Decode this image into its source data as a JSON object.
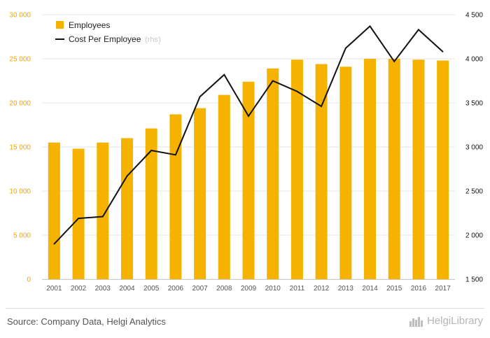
{
  "chart_data": {
    "type": "bar",
    "categories": [
      "2001",
      "2002",
      "2003",
      "2004",
      "2005",
      "2006",
      "2007",
      "2008",
      "2009",
      "2010",
      "2011",
      "2012",
      "2013",
      "2014",
      "2015",
      "2016",
      "2017"
    ],
    "series": [
      {
        "name": "Employees",
        "type": "bar",
        "axis": "left",
        "color": "#f5b300",
        "values": [
          15500,
          14800,
          15500,
          16000,
          17100,
          18700,
          19400,
          20900,
          22400,
          23900,
          24900,
          24400,
          24100,
          25000,
          25000,
          24900,
          24800
        ]
      },
      {
        "name": "Cost Per Employee",
        "name_suffix": "(rhs)",
        "type": "line",
        "axis": "right",
        "color": "#111111",
        "values": [
          1900,
          2190,
          2210,
          2670,
          2960,
          2910,
          3570,
          3820,
          3350,
          3750,
          3630,
          3460,
          4120,
          4370,
          3970,
          4330,
          4080
        ]
      }
    ],
    "y_left": {
      "min": 0,
      "max": 30000,
      "ticks": [
        "0",
        "5 000",
        "10 000",
        "15 000",
        "20 000",
        "25 000",
        "30 000"
      ]
    },
    "y_right": {
      "min": 1500,
      "max": 4500,
      "ticks": [
        "1 500",
        "2 000",
        "2 500",
        "3 000",
        "3 500",
        "4 000",
        "4 500"
      ]
    },
    "grid": true,
    "legend_position": "top-left"
  },
  "footer": {
    "source": "Source: Company Data, Helgi Analytics",
    "brand": "HelgiLibrary"
  }
}
